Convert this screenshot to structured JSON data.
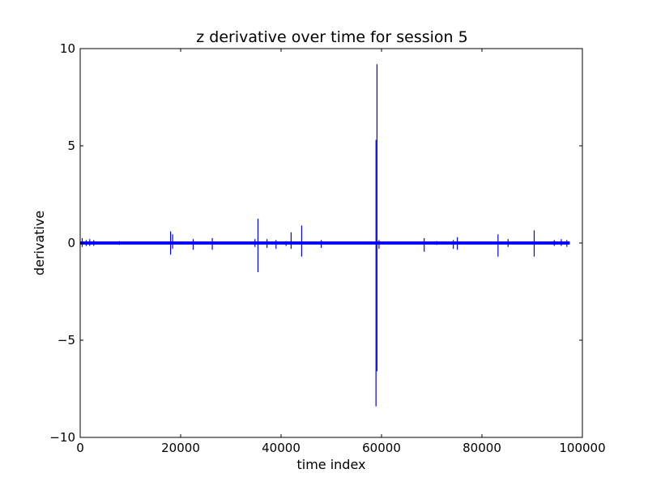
{
  "chart_data": {
    "type": "line",
    "title": "z derivative over time for session 5",
    "xlabel": "time index",
    "ylabel": "derivative",
    "xlim": [
      0,
      100000
    ],
    "ylim": [
      -10,
      10
    ],
    "xticks": [
      0,
      20000,
      40000,
      60000,
      80000,
      100000
    ],
    "yticks": [
      -10,
      -5,
      0,
      5,
      10
    ],
    "xtick_labels": [
      "0",
      "20000",
      "40000",
      "60000",
      "80000",
      "100000"
    ],
    "ytick_labels": [
      "−10",
      "−5",
      "0",
      "5",
      "10"
    ],
    "grid": false,
    "series_color": "#0000ff",
    "baseline_band": [
      -0.08,
      0.08
    ],
    "x_end": 97500,
    "spikes": [
      {
        "x": 400,
        "y_max": 0.25,
        "y_min": -0.2
      },
      {
        "x": 1200,
        "y_max": 0.15,
        "y_min": -0.15
      },
      {
        "x": 1900,
        "y_max": 0.2,
        "y_min": -0.15
      },
      {
        "x": 2700,
        "y_max": 0.15,
        "y_min": -0.15
      },
      {
        "x": 7800,
        "y_max": 0.1,
        "y_min": -0.1
      },
      {
        "x": 18000,
        "y_max": 0.6,
        "y_min": -0.6
      },
      {
        "x": 18400,
        "y_max": 0.45,
        "y_min": -0.3
      },
      {
        "x": 22500,
        "y_max": 0.2,
        "y_min": -0.35
      },
      {
        "x": 26300,
        "y_max": 0.25,
        "y_min": -0.35
      },
      {
        "x": 34800,
        "y_max": 0.2,
        "y_min": -0.2
      },
      {
        "x": 35400,
        "y_max": 1.25,
        "y_min": -1.5
      },
      {
        "x": 37200,
        "y_max": 0.2,
        "y_min": -0.25
      },
      {
        "x": 39000,
        "y_max": 0.15,
        "y_min": -0.3
      },
      {
        "x": 41000,
        "y_max": 0.1,
        "y_min": -0.15
      },
      {
        "x": 42000,
        "y_max": 0.55,
        "y_min": -0.3
      },
      {
        "x": 44100,
        "y_max": 0.9,
        "y_min": -0.7
      },
      {
        "x": 48000,
        "y_max": 0.15,
        "y_min": -0.25
      },
      {
        "x": 58900,
        "y_max": 5.3,
        "y_min": -8.4
      },
      {
        "x": 59100,
        "y_max": 9.2,
        "y_min": -6.6
      },
      {
        "x": 59500,
        "y_max": 0.15,
        "y_min": -0.3
      },
      {
        "x": 68500,
        "y_max": 0.25,
        "y_min": -0.45
      },
      {
        "x": 71000,
        "y_max": 0.1,
        "y_min": -0.1
      },
      {
        "x": 74300,
        "y_max": 0.15,
        "y_min": -0.3
      },
      {
        "x": 75100,
        "y_max": 0.3,
        "y_min": -0.35
      },
      {
        "x": 83200,
        "y_max": 0.45,
        "y_min": -0.7
      },
      {
        "x": 85200,
        "y_max": 0.2,
        "y_min": -0.2
      },
      {
        "x": 90400,
        "y_max": 0.65,
        "y_min": -0.7
      },
      {
        "x": 94400,
        "y_max": 0.15,
        "y_min": -0.15
      },
      {
        "x": 95800,
        "y_max": 0.2,
        "y_min": -0.15
      },
      {
        "x": 96900,
        "y_max": 0.15,
        "y_min": -0.2
      }
    ]
  }
}
